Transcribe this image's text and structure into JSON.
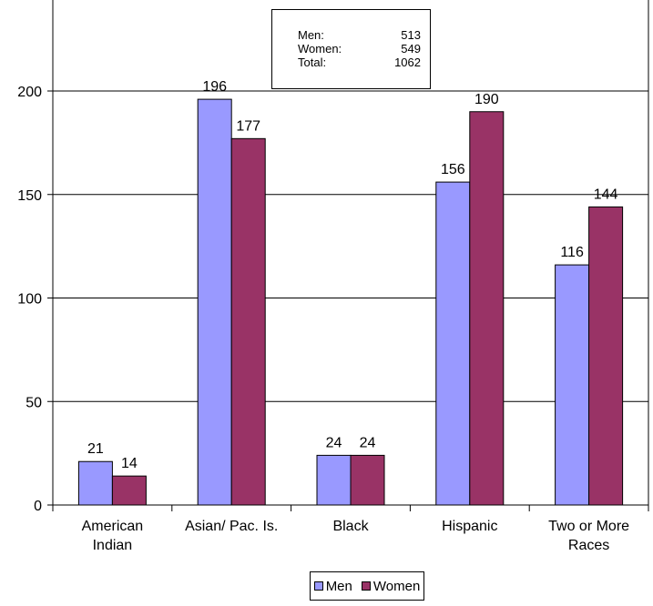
{
  "chart_data": {
    "type": "bar",
    "categories": [
      [
        "American",
        "Indian"
      ],
      [
        "Asian/ Pac. Is."
      ],
      [
        "Black"
      ],
      [
        "Hispanic"
      ],
      [
        "Two or More",
        "Races"
      ]
    ],
    "series": [
      {
        "name": "Men",
        "values": [
          21,
          196,
          24,
          156,
          116
        ],
        "color": "#9999ff"
      },
      {
        "name": "Women",
        "values": [
          14,
          177,
          24,
          190,
          144
        ],
        "color": "#993366"
      }
    ],
    "yticks": [
      0,
      50,
      100,
      150,
      200
    ],
    "ylim": [
      0,
      250
    ],
    "grid": true,
    "legend_placement": "bottom-center",
    "data_labels": true
  },
  "totals_box": {
    "rows": [
      {
        "label": "Men:",
        "value": "513"
      },
      {
        "label": "Women:",
        "value": "549"
      },
      {
        "label": "Total:",
        "value": "1062"
      }
    ]
  },
  "legend": {
    "items": [
      {
        "label": "Men",
        "color": "#9999ff"
      },
      {
        "label": "Women",
        "color": "#993366"
      }
    ]
  }
}
